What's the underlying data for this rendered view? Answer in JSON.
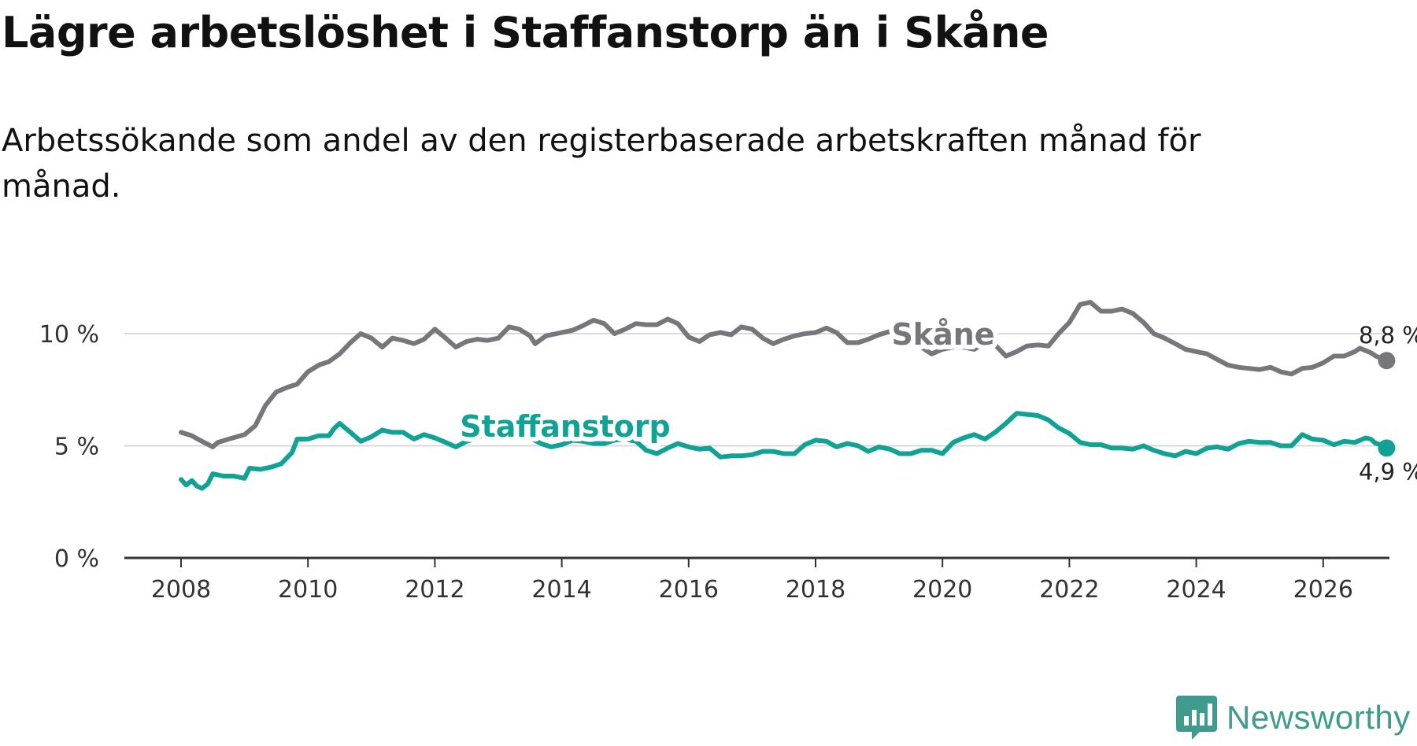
{
  "header": {
    "title": "Lägre arbetslöshet i Staffanstorp än i Skåne",
    "subtitle": "Arbetssökande som andel av den registerbaserade arbetskraften månad för månad."
  },
  "brand": {
    "name": "Newsworthy",
    "color": "#3f9b8e"
  },
  "chart_data": {
    "type": "line",
    "title": "Lägre arbetslöshet i Staffanstorp än i Skåne",
    "subtitle": "Arbetssökande som andel av den registerbaserade arbetskraften månad för månad.",
    "xlabel": "",
    "ylabel": "",
    "xlim": [
      2007.5,
      2027.0
    ],
    "ylim": [
      0,
      12
    ],
    "x_ticks": [
      2008,
      2010,
      2012,
      2014,
      2016,
      2018,
      2020,
      2022,
      2024,
      2026
    ],
    "x_tick_labels": [
      "2008",
      "2010",
      "2012",
      "2014",
      "2016",
      "2018",
      "2020",
      "2022",
      "2024",
      "2026"
    ],
    "y_ticks": [
      0,
      5,
      10
    ],
    "y_tick_labels": [
      "0 %",
      "5 %",
      "10 %"
    ],
    "grid": "horizontal",
    "series": [
      {
        "name": "Skåne",
        "color": "#77767b",
        "end_label": "8,8 %",
        "points": [
          [
            2008.0,
            5.6
          ],
          [
            2008.17,
            5.45
          ],
          [
            2008.33,
            5.2
          ],
          [
            2008.5,
            4.95
          ],
          [
            2008.58,
            5.15
          ],
          [
            2008.75,
            5.3
          ],
          [
            2009.0,
            5.5
          ],
          [
            2009.17,
            5.9
          ],
          [
            2009.33,
            6.8
          ],
          [
            2009.5,
            7.4
          ],
          [
            2009.67,
            7.6
          ],
          [
            2009.83,
            7.75
          ],
          [
            2010.0,
            8.3
          ],
          [
            2010.17,
            8.6
          ],
          [
            2010.33,
            8.75
          ],
          [
            2010.5,
            9.1
          ],
          [
            2010.67,
            9.6
          ],
          [
            2010.83,
            10.0
          ],
          [
            2011.0,
            9.8
          ],
          [
            2011.17,
            9.4
          ],
          [
            2011.33,
            9.8
          ],
          [
            2011.5,
            9.7
          ],
          [
            2011.67,
            9.55
          ],
          [
            2011.83,
            9.75
          ],
          [
            2012.0,
            10.2
          ],
          [
            2012.17,
            9.8
          ],
          [
            2012.33,
            9.4
          ],
          [
            2012.5,
            9.65
          ],
          [
            2012.67,
            9.75
          ],
          [
            2012.83,
            9.7
          ],
          [
            2013.0,
            9.8
          ],
          [
            2013.17,
            10.3
          ],
          [
            2013.33,
            10.2
          ],
          [
            2013.5,
            9.9
          ],
          [
            2013.58,
            9.55
          ],
          [
            2013.75,
            9.9
          ],
          [
            2014.0,
            10.05
          ],
          [
            2014.17,
            10.15
          ],
          [
            2014.33,
            10.35
          ],
          [
            2014.5,
            10.6
          ],
          [
            2014.67,
            10.45
          ],
          [
            2014.83,
            10.0
          ],
          [
            2015.0,
            10.2
          ],
          [
            2015.17,
            10.45
          ],
          [
            2015.33,
            10.4
          ],
          [
            2015.5,
            10.4
          ],
          [
            2015.67,
            10.65
          ],
          [
            2015.83,
            10.45
          ],
          [
            2016.0,
            9.85
          ],
          [
            2016.17,
            9.65
          ],
          [
            2016.33,
            9.95
          ],
          [
            2016.5,
            10.05
          ],
          [
            2016.67,
            9.95
          ],
          [
            2016.83,
            10.3
          ],
          [
            2017.0,
            10.2
          ],
          [
            2017.17,
            9.8
          ],
          [
            2017.33,
            9.55
          ],
          [
            2017.5,
            9.75
          ],
          [
            2017.67,
            9.9
          ],
          [
            2017.83,
            10.0
          ],
          [
            2018.0,
            10.05
          ],
          [
            2018.17,
            10.25
          ],
          [
            2018.33,
            10.05
          ],
          [
            2018.5,
            9.6
          ],
          [
            2018.67,
            9.6
          ],
          [
            2018.83,
            9.75
          ],
          [
            2019.0,
            9.95
          ],
          [
            2019.17,
            10.1
          ],
          [
            2019.33,
            10.2
          ],
          [
            2019.5,
            9.9
          ],
          [
            2019.67,
            9.4
          ],
          [
            2019.83,
            9.1
          ],
          [
            2020.0,
            9.3
          ],
          [
            2020.17,
            9.4
          ],
          [
            2020.33,
            9.4
          ],
          [
            2020.5,
            9.3
          ],
          [
            2020.67,
            9.6
          ],
          [
            2020.83,
            9.5
          ],
          [
            2021.0,
            9.0
          ],
          [
            2021.17,
            9.2
          ],
          [
            2021.33,
            9.45
          ],
          [
            2021.5,
            9.5
          ],
          [
            2021.67,
            9.45
          ],
          [
            2021.83,
            10.0
          ],
          [
            2022.0,
            10.5
          ],
          [
            2022.17,
            11.3
          ],
          [
            2022.33,
            11.4
          ],
          [
            2022.5,
            11.0
          ],
          [
            2022.67,
            11.0
          ],
          [
            2022.83,
            11.1
          ],
          [
            2023.0,
            10.9
          ],
          [
            2023.17,
            10.5
          ],
          [
            2023.33,
            10.0
          ],
          [
            2023.5,
            9.8
          ],
          [
            2023.67,
            9.55
          ],
          [
            2023.83,
            9.3
          ],
          [
            2024.0,
            9.2
          ],
          [
            2024.17,
            9.1
          ],
          [
            2024.33,
            8.85
          ],
          [
            2024.5,
            8.6
          ],
          [
            2024.67,
            8.5
          ],
          [
            2024.83,
            8.45
          ],
          [
            2025.0,
            8.4
          ],
          [
            2025.17,
            8.5
          ],
          [
            2025.33,
            8.3
          ],
          [
            2025.5,
            8.2
          ],
          [
            2025.67,
            8.45
          ],
          [
            2025.83,
            8.5
          ],
          [
            2026.0,
            8.7
          ],
          [
            2026.17,
            9.0
          ],
          [
            2026.33,
            9.0
          ],
          [
            2026.5,
            9.2
          ],
          [
            2026.58,
            9.35
          ],
          [
            2026.75,
            9.15
          ],
          [
            2026.83,
            9.0
          ],
          [
            2026.92,
            8.9
          ],
          [
            2027.0,
            8.8
          ]
        ]
      },
      {
        "name": "Staffanstorp",
        "color": "#10a395",
        "end_label": "4,9 %",
        "points": [
          [
            2008.0,
            3.5
          ],
          [
            2008.08,
            3.25
          ],
          [
            2008.17,
            3.45
          ],
          [
            2008.25,
            3.2
          ],
          [
            2008.33,
            3.1
          ],
          [
            2008.42,
            3.3
          ],
          [
            2008.5,
            3.75
          ],
          [
            2008.67,
            3.65
          ],
          [
            2008.83,
            3.65
          ],
          [
            2009.0,
            3.55
          ],
          [
            2009.08,
            4.0
          ],
          [
            2009.25,
            3.95
          ],
          [
            2009.42,
            4.05
          ],
          [
            2009.58,
            4.2
          ],
          [
            2009.75,
            4.7
          ],
          [
            2009.83,
            5.3
          ],
          [
            2010.0,
            5.3
          ],
          [
            2010.17,
            5.45
          ],
          [
            2010.33,
            5.45
          ],
          [
            2010.42,
            5.8
          ],
          [
            2010.5,
            6.0
          ],
          [
            2010.67,
            5.6
          ],
          [
            2010.83,
            5.2
          ],
          [
            2011.0,
            5.4
          ],
          [
            2011.17,
            5.7
          ],
          [
            2011.33,
            5.6
          ],
          [
            2011.5,
            5.6
          ],
          [
            2011.67,
            5.3
          ],
          [
            2011.83,
            5.5
          ],
          [
            2012.0,
            5.35
          ],
          [
            2012.17,
            5.15
          ],
          [
            2012.33,
            4.95
          ],
          [
            2012.5,
            5.2
          ],
          [
            2012.67,
            5.35
          ],
          [
            2012.83,
            5.6
          ],
          [
            2013.0,
            5.55
          ],
          [
            2013.17,
            5.65
          ],
          [
            2013.33,
            5.4
          ],
          [
            2013.5,
            5.35
          ],
          [
            2013.67,
            5.1
          ],
          [
            2013.83,
            4.95
          ],
          [
            2014.0,
            5.05
          ],
          [
            2014.17,
            5.25
          ],
          [
            2014.33,
            5.2
          ],
          [
            2014.5,
            5.1
          ],
          [
            2014.67,
            5.1
          ],
          [
            2014.83,
            5.25
          ],
          [
            2015.0,
            5.3
          ],
          [
            2015.17,
            5.2
          ],
          [
            2015.33,
            4.8
          ],
          [
            2015.5,
            4.65
          ],
          [
            2015.67,
            4.9
          ],
          [
            2015.83,
            5.1
          ],
          [
            2016.0,
            4.95
          ],
          [
            2016.17,
            4.85
          ],
          [
            2016.33,
            4.9
          ],
          [
            2016.5,
            4.5
          ],
          [
            2016.67,
            4.55
          ],
          [
            2016.83,
            4.55
          ],
          [
            2017.0,
            4.6
          ],
          [
            2017.17,
            4.75
          ],
          [
            2017.33,
            4.75
          ],
          [
            2017.5,
            4.65
          ],
          [
            2017.67,
            4.65
          ],
          [
            2017.83,
            5.05
          ],
          [
            2018.0,
            5.25
          ],
          [
            2018.17,
            5.2
          ],
          [
            2018.33,
            4.95
          ],
          [
            2018.5,
            5.1
          ],
          [
            2018.67,
            5.0
          ],
          [
            2018.83,
            4.75
          ],
          [
            2019.0,
            4.95
          ],
          [
            2019.17,
            4.85
          ],
          [
            2019.33,
            4.65
          ],
          [
            2019.5,
            4.65
          ],
          [
            2019.67,
            4.8
          ],
          [
            2019.83,
            4.8
          ],
          [
            2020.0,
            4.65
          ],
          [
            2020.17,
            5.15
          ],
          [
            2020.33,
            5.35
          ],
          [
            2020.5,
            5.5
          ],
          [
            2020.67,
            5.3
          ],
          [
            2020.83,
            5.6
          ],
          [
            2021.0,
            6.0
          ],
          [
            2021.17,
            6.45
          ],
          [
            2021.33,
            6.4
          ],
          [
            2021.5,
            6.35
          ],
          [
            2021.67,
            6.15
          ],
          [
            2021.83,
            5.8
          ],
          [
            2022.0,
            5.55
          ],
          [
            2022.17,
            5.15
          ],
          [
            2022.33,
            5.05
          ],
          [
            2022.5,
            5.05
          ],
          [
            2022.67,
            4.9
          ],
          [
            2022.83,
            4.9
          ],
          [
            2023.0,
            4.85
          ],
          [
            2023.17,
            5.0
          ],
          [
            2023.33,
            4.8
          ],
          [
            2023.5,
            4.65
          ],
          [
            2023.67,
            4.55
          ],
          [
            2023.83,
            4.75
          ],
          [
            2024.0,
            4.65
          ],
          [
            2024.17,
            4.9
          ],
          [
            2024.33,
            4.95
          ],
          [
            2024.5,
            4.85
          ],
          [
            2024.67,
            5.1
          ],
          [
            2024.83,
            5.2
          ],
          [
            2025.0,
            5.15
          ],
          [
            2025.17,
            5.15
          ],
          [
            2025.33,
            5.0
          ],
          [
            2025.5,
            5.0
          ],
          [
            2025.67,
            5.5
          ],
          [
            2025.83,
            5.3
          ],
          [
            2026.0,
            5.25
          ],
          [
            2026.17,
            5.05
          ],
          [
            2026.33,
            5.2
          ],
          [
            2026.5,
            5.15
          ],
          [
            2026.67,
            5.35
          ],
          [
            2026.75,
            5.3
          ],
          [
            2026.83,
            5.1
          ],
          [
            2026.92,
            5.05
          ],
          [
            2027.0,
            4.9
          ]
        ]
      }
    ]
  }
}
